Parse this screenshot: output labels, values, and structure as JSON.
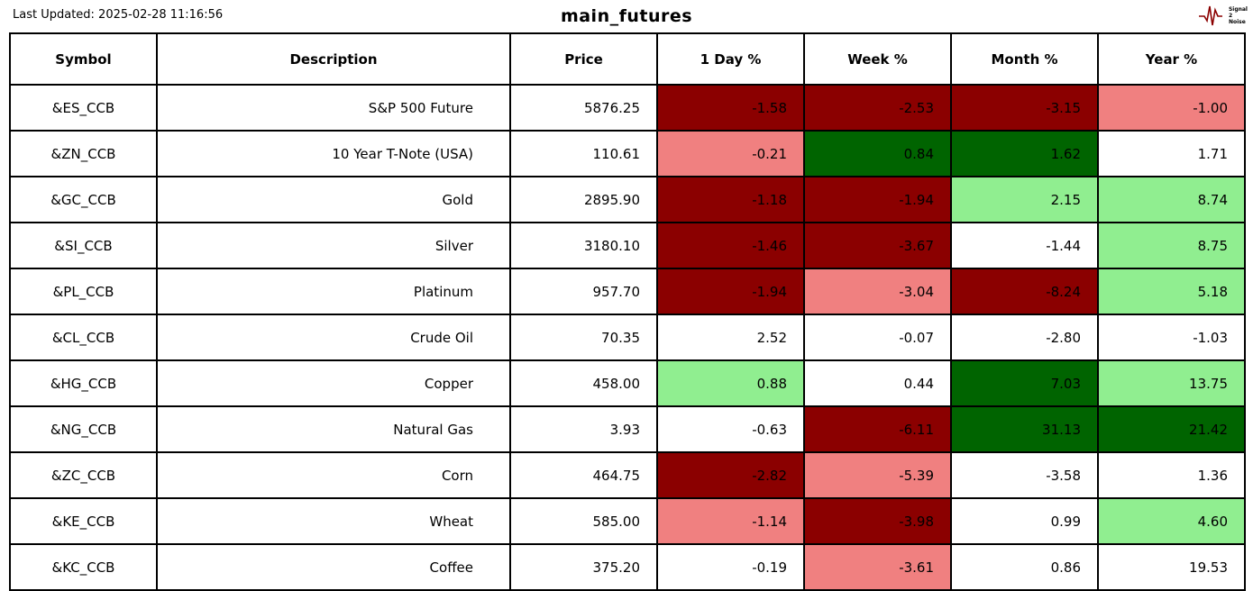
{
  "header": {
    "last_updated": "Last Updated: 2025-02-28 11:16:56",
    "title": "main_futures",
    "logo": {
      "lines": [
        "Signal",
        "2",
        "Noise"
      ]
    }
  },
  "colors": {
    "strong_negative": "#8b0000",
    "mild_negative": "#f08080",
    "strong_positive": "#006400",
    "mild_positive": "#90ee90",
    "neutral": "#ffffff",
    "border": "#000000",
    "logo_accent": "#8b0000"
  },
  "chart_data": {
    "type": "table",
    "title": "main_futures",
    "columns": [
      "Symbol",
      "Description",
      "Price",
      "1 Day %",
      "Week %",
      "Month %",
      "Year %"
    ],
    "rows": [
      {
        "cells": [
          "&ES_CCB",
          "S&P 500 Future",
          "5876.25",
          "-1.58",
          "-2.53",
          "-3.15",
          "-1.00"
        ],
        "bg": [
          null,
          null,
          null,
          "strong_negative",
          "strong_negative",
          "strong_negative",
          "mild_negative"
        ]
      },
      {
        "cells": [
          "&ZN_CCB",
          "10 Year T-Note (USA)",
          "110.61",
          "-0.21",
          "0.84",
          "1.62",
          "1.71"
        ],
        "bg": [
          null,
          null,
          null,
          "mild_negative",
          "strong_positive",
          "strong_positive",
          null
        ]
      },
      {
        "cells": [
          "&GC_CCB",
          "Gold",
          "2895.90",
          "-1.18",
          "-1.94",
          "2.15",
          "8.74"
        ],
        "bg": [
          null,
          null,
          null,
          "strong_negative",
          "strong_negative",
          "mild_positive",
          "mild_positive"
        ]
      },
      {
        "cells": [
          "&SI_CCB",
          "Silver",
          "3180.10",
          "-1.46",
          "-3.67",
          "-1.44",
          "8.75"
        ],
        "bg": [
          null,
          null,
          null,
          "strong_negative",
          "strong_negative",
          null,
          "mild_positive"
        ]
      },
      {
        "cells": [
          "&PL_CCB",
          "Platinum",
          "957.70",
          "-1.94",
          "-3.04",
          "-8.24",
          "5.18"
        ],
        "bg": [
          null,
          null,
          null,
          "strong_negative",
          "mild_negative",
          "strong_negative",
          "mild_positive"
        ]
      },
      {
        "cells": [
          "&CL_CCB",
          "Crude Oil",
          "70.35",
          "2.52",
          "-0.07",
          "-2.80",
          "-1.03"
        ],
        "bg": [
          null,
          null,
          null,
          null,
          null,
          null,
          null
        ]
      },
      {
        "cells": [
          "&HG_CCB",
          "Copper",
          "458.00",
          "0.88",
          "0.44",
          "7.03",
          "13.75"
        ],
        "bg": [
          null,
          null,
          null,
          "mild_positive",
          null,
          "strong_positive",
          "mild_positive"
        ]
      },
      {
        "cells": [
          "&NG_CCB",
          "Natural Gas",
          "3.93",
          "-0.63",
          "-6.11",
          "31.13",
          "21.42"
        ],
        "bg": [
          null,
          null,
          null,
          null,
          "strong_negative",
          "strong_positive",
          "strong_positive"
        ]
      },
      {
        "cells": [
          "&ZC_CCB",
          "Corn",
          "464.75",
          "-2.82",
          "-5.39",
          "-3.58",
          "1.36"
        ],
        "bg": [
          null,
          null,
          null,
          "strong_negative",
          "mild_negative",
          null,
          null
        ]
      },
      {
        "cells": [
          "&KE_CCB",
          "Wheat",
          "585.00",
          "-1.14",
          "-3.98",
          "0.99",
          "4.60"
        ],
        "bg": [
          null,
          null,
          null,
          "mild_negative",
          "strong_negative",
          null,
          "mild_positive"
        ]
      },
      {
        "cells": [
          "&KC_CCB",
          "Coffee",
          "375.20",
          "-0.19",
          "-3.61",
          "0.86",
          "19.53"
        ],
        "bg": [
          null,
          null,
          null,
          null,
          "mild_negative",
          null,
          null
        ]
      }
    ]
  }
}
